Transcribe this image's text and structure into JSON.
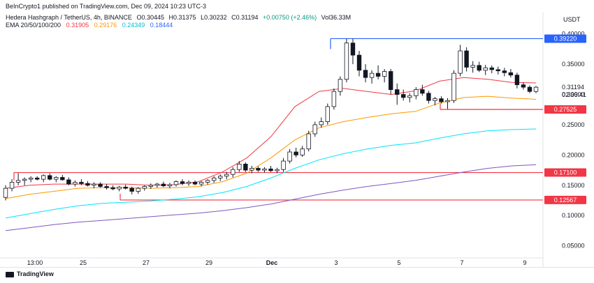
{
  "header": {
    "published": "BeInCrypto1 published on TradingView.com, Dec 09, 2024 10:23 UTC-3"
  },
  "symbol": {
    "name": "Hedera Hashgraph / TetherUS, 4h, BINANCE",
    "open": "O0.30445",
    "high": "H0.31375",
    "low": "L0.30232",
    "close": "C0.31194",
    "change": "+0.00750 (+2.46%)",
    "volume": "Vol36.33M"
  },
  "ema": {
    "label": "EMA 20/50/100/200",
    "v20": "0.31905",
    "v50": "0.29176",
    "v100": "0.24349",
    "v200": "0.18444"
  },
  "currency": "USDT",
  "brand": "TradingView",
  "colors": {
    "up": "#089981",
    "down": "#131722",
    "ema20": "#f23645",
    "ema50": "#ff9800",
    "ema100": "#00e5ff",
    "ema200": "#7e57c2",
    "resistance": "#2962ff",
    "support": "#f23645"
  },
  "chart_data": {
    "type": "candlestick",
    "title": "Hedera Hashgraph / TetherUS, 4h, BINANCE",
    "ylim": [
      0.03,
      0.41
    ],
    "y_ticks": [
      "0.40000",
      "0.35000",
      "0.30000",
      "0.25000",
      "0.20000",
      "0.15000",
      "0.10000",
      "0.05000"
    ],
    "x_ticks": [
      "13:00",
      "25",
      "27",
      "29",
      "Dec",
      "3",
      "5",
      "7",
      "9"
    ],
    "price_labels": [
      {
        "text": "0.39220",
        "value": 0.3922,
        "color": "#2962ff"
      },
      {
        "text": "0.27525",
        "value": 0.27525,
        "color": "#f23645"
      },
      {
        "text": "0.17100",
        "value": 0.171,
        "color": "#f23645"
      },
      {
        "text": "0.12567",
        "value": 0.12567,
        "color": "#f23645"
      }
    ],
    "last_price": {
      "value": "0.31194",
      "countdown": "02:36:41"
    },
    "levels": [
      {
        "value": 0.3922,
        "color": "#2962ff"
      },
      {
        "value": 0.27525,
        "color": "#f23645"
      },
      {
        "value": 0.171,
        "color": "#f23645"
      },
      {
        "value": 0.12567,
        "color": "#f23645"
      }
    ],
    "candles": [
      [
        0.13,
        0.15,
        0.125,
        0.145
      ],
      [
        0.145,
        0.16,
        0.14,
        0.155
      ],
      [
        0.155,
        0.17,
        0.15,
        0.158
      ],
      [
        0.158,
        0.163,
        0.15,
        0.16
      ],
      [
        0.16,
        0.165,
        0.155,
        0.162
      ],
      [
        0.162,
        0.165,
        0.158,
        0.16
      ],
      [
        0.16,
        0.168,
        0.155,
        0.166
      ],
      [
        0.166,
        0.17,
        0.158,
        0.16
      ],
      [
        0.16,
        0.165,
        0.155,
        0.163
      ],
      [
        0.163,
        0.167,
        0.158,
        0.159
      ],
      [
        0.159,
        0.163,
        0.15,
        0.152
      ],
      [
        0.152,
        0.158,
        0.148,
        0.155
      ],
      [
        0.155,
        0.16,
        0.15,
        0.153
      ],
      [
        0.153,
        0.157,
        0.148,
        0.15
      ],
      [
        0.15,
        0.155,
        0.145,
        0.152
      ],
      [
        0.152,
        0.155,
        0.146,
        0.148
      ],
      [
        0.148,
        0.152,
        0.143,
        0.146
      ],
      [
        0.146,
        0.15,
        0.142,
        0.144
      ],
      [
        0.144,
        0.149,
        0.14,
        0.147
      ],
      [
        0.147,
        0.151,
        0.143,
        0.145
      ],
      [
        0.145,
        0.148,
        0.135,
        0.14
      ],
      [
        0.14,
        0.147,
        0.136,
        0.145
      ],
      [
        0.145,
        0.15,
        0.141,
        0.148
      ],
      [
        0.148,
        0.153,
        0.144,
        0.15
      ],
      [
        0.15,
        0.154,
        0.146,
        0.152
      ],
      [
        0.152,
        0.156,
        0.147,
        0.149
      ],
      [
        0.149,
        0.154,
        0.145,
        0.151
      ],
      [
        0.151,
        0.158,
        0.148,
        0.156
      ],
      [
        0.156,
        0.16,
        0.15,
        0.153
      ],
      [
        0.153,
        0.158,
        0.149,
        0.155
      ],
      [
        0.155,
        0.158,
        0.15,
        0.152
      ],
      [
        0.152,
        0.157,
        0.148,
        0.155
      ],
      [
        0.155,
        0.16,
        0.151,
        0.158
      ],
      [
        0.158,
        0.165,
        0.154,
        0.162
      ],
      [
        0.162,
        0.168,
        0.157,
        0.165
      ],
      [
        0.165,
        0.172,
        0.16,
        0.168
      ],
      [
        0.168,
        0.18,
        0.163,
        0.176
      ],
      [
        0.176,
        0.19,
        0.172,
        0.185
      ],
      [
        0.185,
        0.188,
        0.172,
        0.175
      ],
      [
        0.175,
        0.182,
        0.17,
        0.178
      ],
      [
        0.178,
        0.181,
        0.172,
        0.175
      ],
      [
        0.175,
        0.18,
        0.171,
        0.177
      ],
      [
        0.177,
        0.182,
        0.172,
        0.174
      ],
      [
        0.174,
        0.179,
        0.17,
        0.176
      ],
      [
        0.176,
        0.195,
        0.172,
        0.19
      ],
      [
        0.19,
        0.21,
        0.186,
        0.205
      ],
      [
        0.205,
        0.212,
        0.196,
        0.2
      ],
      [
        0.2,
        0.215,
        0.197,
        0.21
      ],
      [
        0.21,
        0.24,
        0.206,
        0.235
      ],
      [
        0.235,
        0.255,
        0.23,
        0.25
      ],
      [
        0.25,
        0.262,
        0.245,
        0.255
      ],
      [
        0.255,
        0.285,
        0.25,
        0.28
      ],
      [
        0.28,
        0.31,
        0.275,
        0.305
      ],
      [
        0.305,
        0.33,
        0.298,
        0.325
      ],
      [
        0.325,
        0.392,
        0.32,
        0.385
      ],
      [
        0.385,
        0.392,
        0.35,
        0.365
      ],
      [
        0.365,
        0.372,
        0.33,
        0.34
      ],
      [
        0.34,
        0.35,
        0.32,
        0.328
      ],
      [
        0.328,
        0.34,
        0.318,
        0.335
      ],
      [
        0.335,
        0.348,
        0.325,
        0.33
      ],
      [
        0.33,
        0.342,
        0.32,
        0.338
      ],
      [
        0.338,
        0.342,
        0.3,
        0.308
      ],
      [
        0.308,
        0.318,
        0.283,
        0.3
      ],
      [
        0.3,
        0.308,
        0.29,
        0.295
      ],
      [
        0.295,
        0.302,
        0.287,
        0.298
      ],
      [
        0.298,
        0.312,
        0.292,
        0.308
      ],
      [
        0.308,
        0.316,
        0.298,
        0.302
      ],
      [
        0.302,
        0.306,
        0.285,
        0.29
      ],
      [
        0.29,
        0.296,
        0.282,
        0.293
      ],
      [
        0.293,
        0.297,
        0.285,
        0.288
      ],
      [
        0.288,
        0.294,
        0.276,
        0.29
      ],
      [
        0.29,
        0.34,
        0.286,
        0.335
      ],
      [
        0.335,
        0.382,
        0.33,
        0.372
      ],
      [
        0.372,
        0.378,
        0.338,
        0.345
      ],
      [
        0.345,
        0.355,
        0.336,
        0.348
      ],
      [
        0.348,
        0.354,
        0.337,
        0.34
      ],
      [
        0.34,
        0.349,
        0.332,
        0.344
      ],
      [
        0.344,
        0.348,
        0.335,
        0.341
      ],
      [
        0.341,
        0.346,
        0.333,
        0.339
      ],
      [
        0.339,
        0.344,
        0.33,
        0.336
      ],
      [
        0.336,
        0.342,
        0.328,
        0.332
      ],
      [
        0.332,
        0.336,
        0.31,
        0.316
      ],
      [
        0.316,
        0.32,
        0.308,
        0.312
      ],
      [
        0.312,
        0.315,
        0.302,
        0.305
      ],
      [
        0.305,
        0.314,
        0.302,
        0.312
      ]
    ],
    "ema_series": [
      {
        "period": 20,
        "points": [
          0.145,
          0.15,
          0.152,
          0.152,
          0.152,
          0.152,
          0.15,
          0.151,
          0.156,
          0.172,
          0.195,
          0.23,
          0.28,
          0.305,
          0.31,
          0.305,
          0.3,
          0.306,
          0.322,
          0.328,
          0.325,
          0.32,
          0.319
        ]
      },
      {
        "period": 50,
        "points": [
          0.128,
          0.135,
          0.14,
          0.145,
          0.146,
          0.146,
          0.145,
          0.146,
          0.148,
          0.156,
          0.17,
          0.195,
          0.225,
          0.245,
          0.255,
          0.262,
          0.268,
          0.272,
          0.286,
          0.295,
          0.297,
          0.294,
          0.292
        ]
      },
      {
        "period": 100,
        "points": [
          0.096,
          0.103,
          0.11,
          0.116,
          0.12,
          0.122,
          0.124,
          0.127,
          0.131,
          0.138,
          0.148,
          0.162,
          0.178,
          0.192,
          0.202,
          0.21,
          0.216,
          0.22,
          0.228,
          0.235,
          0.24,
          0.242,
          0.243
        ]
      },
      {
        "period": 200,
        "points": [
          0.075,
          0.08,
          0.085,
          0.089,
          0.092,
          0.095,
          0.098,
          0.101,
          0.104,
          0.108,
          0.113,
          0.119,
          0.127,
          0.135,
          0.142,
          0.148,
          0.153,
          0.158,
          0.165,
          0.172,
          0.178,
          0.182,
          0.184
        ]
      }
    ]
  }
}
